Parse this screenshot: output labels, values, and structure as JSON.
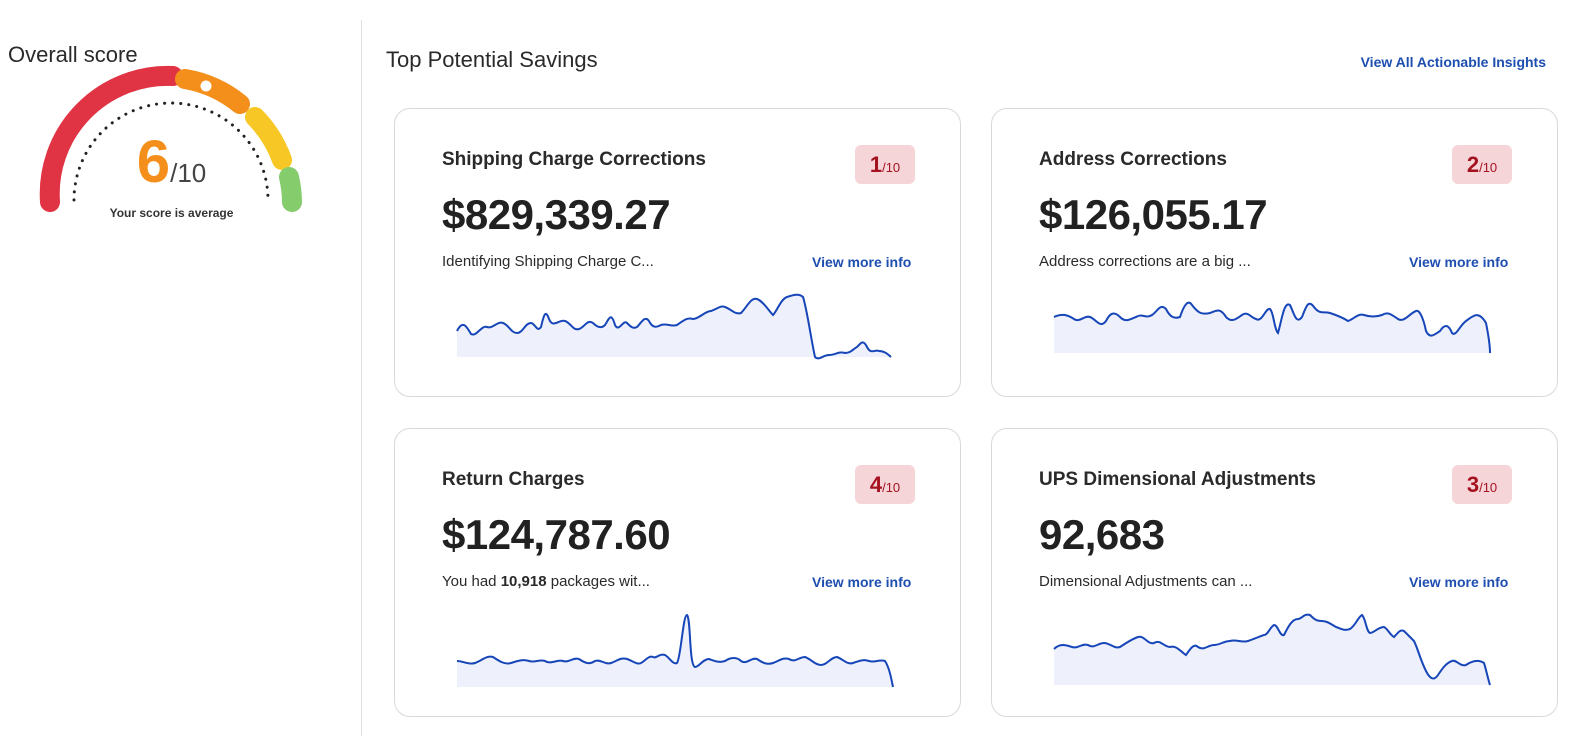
{
  "overall": {
    "title": "Overall score",
    "score": "6",
    "score_max": "/10",
    "caption": "Your score is average",
    "gauge_colors": [
      "#e03445",
      "#f48f1b",
      "#f7c825",
      "#85cc6d"
    ]
  },
  "section": {
    "title": "Top Potential Savings",
    "view_all": "View All Actionable Insights"
  },
  "cards": [
    {
      "title": "Shipping Charge Corrections",
      "rank": "1",
      "rank_max": "/10",
      "value": "$829,339.27",
      "description": "Identifying Shipping Charge C...",
      "more": "View more info"
    },
    {
      "title": "Address Corrections",
      "rank": "2",
      "rank_max": "/10",
      "value": "$126,055.17",
      "description": "Address corrections are a big ...",
      "more": "View more info"
    },
    {
      "title": "Return Charges",
      "rank": "4",
      "rank_max": "/10",
      "value": "$124,787.60",
      "description_pre": "You had ",
      "description_bold": "10,918",
      "description_post": " packages wit...",
      "more": "View more info"
    },
    {
      "title": "UPS Dimensional Adjustments",
      "rank": "3",
      "rank_max": "/10",
      "value": "92,683",
      "description": "Dimensional Adjustments can ...",
      "more": "View more info"
    }
  ],
  "colors": {
    "link": "#1d4eb0",
    "badge_bg": "#f6d5d8",
    "badge_text": "#a4121f",
    "sparkline": "#1646b8",
    "sparkline_fill": "#eef0fb"
  }
}
